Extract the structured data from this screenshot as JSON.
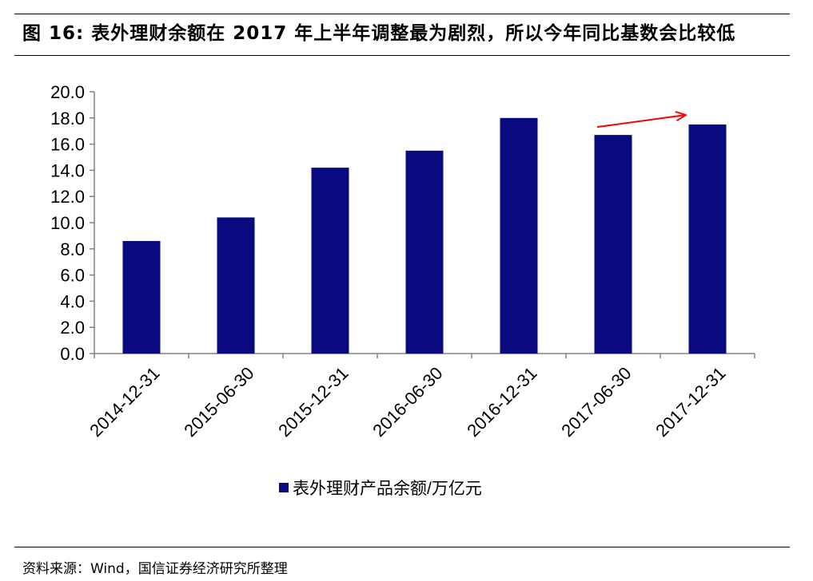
{
  "figure": {
    "title": "图 16: 表外理财余额在 2017 年上半年调整最为剧烈，所以今年同比基数会比较低",
    "source": "资料来源：Wind，国信证券经济研究所整理"
  },
  "colors": {
    "bar": "#0A0A80",
    "arrow": "#FF0000",
    "axis": "#808080",
    "text": "#000000"
  },
  "chart_data": {
    "type": "bar",
    "title": "图 16: 表外理财余额在 2017 年上半年调整最为剧烈，所以今年同比基数会比较低",
    "categories": [
      "2014-12-31",
      "2015-06-30",
      "2015-12-31",
      "2016-06-30",
      "2016-12-31",
      "2017-06-30",
      "2017-12-31"
    ],
    "series": [
      {
        "name": "表外理财产品余额/万亿元",
        "values": [
          8.6,
          10.4,
          14.2,
          15.5,
          18.0,
          16.7,
          17.5
        ]
      }
    ],
    "ylim": [
      0,
      20
    ],
    "yticks": [
      "0.0",
      "2.0",
      "4.0",
      "6.0",
      "8.0",
      "10.0",
      "12.0",
      "14.0",
      "16.0",
      "18.0",
      "20.0"
    ],
    "ytick_values": [
      0,
      2,
      4,
      6,
      8,
      10,
      12,
      14,
      16,
      18,
      20
    ],
    "xlabel": "",
    "ylabel": "",
    "grid": false,
    "legend_position": "bottom-center",
    "annotations": [
      {
        "type": "arrow",
        "description": "upward trend",
        "from_category": "2017-06-30",
        "to_category": "2017-12-31",
        "color": "#FF0000"
      }
    ]
  }
}
